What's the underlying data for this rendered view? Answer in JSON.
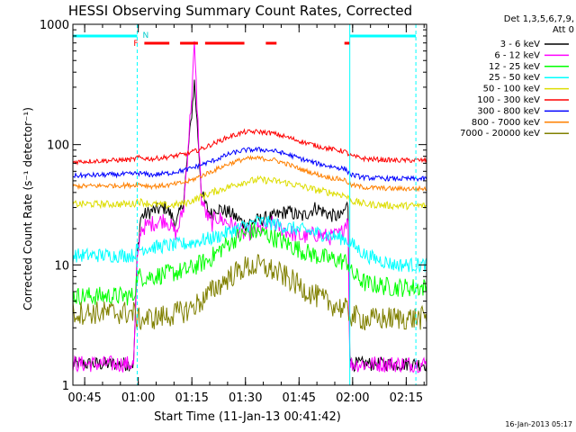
{
  "chart_data": {
    "type": "line",
    "title": "HESSI Observing Summary Count Rates, Corrected",
    "xlabel": "Start Time (11-Jan-13 00:41:42)",
    "ylabel": "Corrected Count Rate (s⁻¹ detector⁻¹)",
    "yscale": "log",
    "ylim": [
      1,
      1000
    ],
    "xlim_minutes": [
      0,
      99
    ],
    "x_ticks": [
      {
        "minutes": 3.3,
        "label": "00:45"
      },
      {
        "minutes": 18.3,
        "label": "01:00"
      },
      {
        "minutes": 33.3,
        "label": "01:15"
      },
      {
        "minutes": 48.3,
        "label": "01:30"
      },
      {
        "minutes": 63.3,
        "label": "01:45"
      },
      {
        "minutes": 78.3,
        "label": "02:00"
      },
      {
        "minutes": 93.3,
        "label": "02:15"
      }
    ],
    "y_ticks": [
      {
        "value": 1,
        "label": "1"
      },
      {
        "value": 10,
        "label": "10"
      },
      {
        "value": 100,
        "label": "100"
      },
      {
        "value": 1000,
        "label": "1000"
      }
    ],
    "legend_header": [
      "Det 1,3,5,6,7,9,",
      "Att 0"
    ],
    "legend_position": "right",
    "flags": {
      "night_label": "N",
      "flare_label": "F",
      "night_intervals_minutes": [
        [
          0,
          18
        ],
        [
          77.5,
          96
        ]
      ],
      "flare_intervals_minutes": [
        [
          20,
          27
        ],
        [
          30,
          35
        ],
        [
          37,
          48
        ],
        [
          54,
          57
        ],
        [
          76,
          77.5
        ]
      ]
    },
    "dashed_lines_minutes": [
      18,
      96
    ],
    "solid_lines_minutes": [
      77.5
    ],
    "series": [
      {
        "name": "3 - 6 keV",
        "color": "#000000",
        "x": [
          0,
          17,
          18,
          19,
          22,
          26,
          29,
          31,
          33,
          34,
          35,
          36,
          37,
          38,
          39,
          40,
          44,
          48,
          53,
          56,
          60,
          64,
          68,
          72,
          75,
          77,
          77.5,
          78,
          96
        ],
        "y": [
          1.5,
          1.5,
          12,
          25,
          28,
          30,
          22,
          35,
          150,
          330,
          120,
          40,
          32,
          28,
          26,
          30,
          27,
          22,
          24,
          25,
          28,
          25,
          30,
          26,
          25,
          32,
          2,
          1.5,
          1.5
        ]
      },
      {
        "name": "6 - 12 keV",
        "color": "#ff00ff",
        "x": [
          0,
          17,
          18,
          19,
          22,
          26,
          29,
          31,
          33,
          34,
          35,
          36,
          37,
          38,
          39,
          40,
          44,
          48,
          53,
          56,
          60,
          64,
          68,
          72,
          75,
          77,
          77.5,
          78,
          96
        ],
        "y": [
          1.5,
          1.5,
          10,
          20,
          22,
          24,
          18,
          30,
          200,
          650,
          150,
          35,
          28,
          24,
          22,
          25,
          22,
          18,
          20,
          22,
          19,
          17,
          18,
          17,
          18,
          25,
          1.5,
          1.5,
          1.5
        ]
      },
      {
        "name": "12 - 25 keV",
        "color": "#00ff00",
        "x": [
          0,
          17,
          18,
          22,
          27,
          32,
          35,
          38,
          42,
          46,
          50,
          54,
          58,
          62,
          66,
          70,
          74,
          77,
          78,
          82,
          90,
          96
        ],
        "y": [
          5.5,
          5.5,
          8,
          8,
          8.5,
          9,
          10,
          11,
          14,
          17,
          19,
          18,
          16,
          14,
          12.5,
          11.5,
          11,
          10.5,
          8.5,
          7,
          6.5,
          6.5
        ]
      },
      {
        "name": "25 - 50 keV",
        "color": "#00ffff",
        "x": [
          0,
          17,
          18,
          22,
          27,
          32,
          36,
          40,
          44,
          48,
          52,
          56,
          60,
          64,
          68,
          72,
          76,
          78,
          82,
          90,
          96
        ],
        "y": [
          12,
          12,
          13.5,
          14,
          14.5,
          15,
          16,
          17,
          19,
          21,
          23,
          22,
          20.5,
          19.5,
          18.5,
          17.5,
          16.5,
          15,
          12,
          10,
          10
        ]
      },
      {
        "name": "50 - 100 keV",
        "color": "#dddd00",
        "x": [
          0,
          17,
          18,
          22,
          27,
          32,
          36,
          40,
          44,
          48,
          52,
          56,
          60,
          64,
          68,
          72,
          76,
          78,
          82,
          90,
          96
        ],
        "y": [
          32,
          32,
          34,
          32,
          31,
          33,
          37,
          41,
          45,
          49,
          51,
          50,
          48,
          45,
          42,
          40,
          38,
          34,
          32,
          31,
          31
        ]
      },
      {
        "name": "100 - 300 keV",
        "color": "#ff0000",
        "x": [
          0,
          17,
          18,
          22,
          27,
          32,
          36,
          40,
          44,
          48,
          52,
          56,
          60,
          64,
          68,
          72,
          76,
          78,
          82,
          90,
          96
        ],
        "y": [
          72,
          75,
          78,
          76,
          79,
          84,
          92,
          104,
          117,
          127,
          128,
          124,
          115,
          106,
          98,
          92,
          88,
          80,
          76,
          74,
          74
        ]
      },
      {
        "name": "300 - 800 keV",
        "color": "#0000ff",
        "x": [
          0,
          17,
          18,
          22,
          27,
          32,
          36,
          40,
          44,
          48,
          52,
          56,
          60,
          64,
          68,
          72,
          76,
          78,
          82,
          90,
          96
        ],
        "y": [
          55,
          57,
          58,
          56,
          58,
          62,
          68,
          75,
          84,
          90,
          91,
          89,
          83,
          76,
          70,
          66,
          63,
          56,
          53,
          52,
          52
        ]
      },
      {
        "name": "800 - 7000 keV",
        "color": "#ff8000",
        "x": [
          0,
          17,
          18,
          22,
          27,
          32,
          36,
          40,
          44,
          48,
          52,
          56,
          60,
          64,
          68,
          72,
          76,
          78,
          82,
          90,
          96
        ],
        "y": [
          45,
          46,
          47,
          45,
          46,
          49,
          55,
          62,
          70,
          76,
          77,
          75,
          69,
          62,
          57,
          53,
          51,
          46,
          44,
          43,
          43
        ]
      },
      {
        "name": "7000 - 20000 keV",
        "color": "#808000",
        "x": [
          0,
          17,
          18,
          22,
          27,
          32,
          36,
          40,
          44,
          48,
          52,
          56,
          60,
          64,
          68,
          72,
          76,
          78,
          82,
          90,
          96
        ],
        "y": [
          4,
          4,
          3.5,
          3.6,
          3.8,
          4.2,
          5,
          6.5,
          8,
          9.5,
          9.8,
          9,
          7.8,
          6.5,
          5.5,
          4.8,
          4.3,
          3.8,
          3.5,
          3.6,
          3.6
        ]
      }
    ]
  },
  "timestamp": "16-Jan-2013 05:17"
}
